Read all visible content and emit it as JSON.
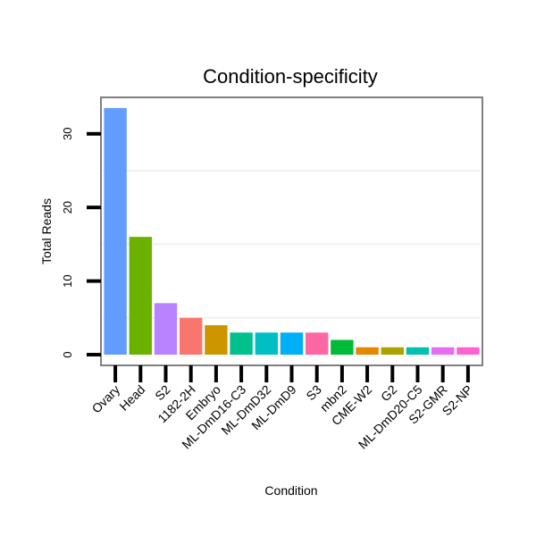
{
  "chart_data": {
    "type": "bar",
    "title": "Condition-specificity",
    "xlabel": "Condition",
    "ylabel": "Total Reads",
    "ylim": [
      0,
      35
    ],
    "yticks": [
      0,
      10,
      20,
      30
    ],
    "grid": true,
    "legend": "none",
    "categories": [
      "Ovary",
      "Head",
      "S2",
      "1182-2H",
      "Embryo",
      "ML-DmD16-C3",
      "ML-DmD32",
      "ML-DmD9",
      "S3",
      "mbn2",
      "CME-W2",
      "G2",
      "ML-DmD20-C5",
      "S2-GMR",
      "S2-NP"
    ],
    "values": [
      33.5,
      16,
      7,
      5,
      4,
      3,
      3,
      3,
      3,
      2,
      1,
      1,
      1,
      1,
      1
    ],
    "colors": [
      "#619CFF",
      "#6BB100",
      "#B983FF",
      "#F8766D",
      "#CD9600",
      "#00C08B",
      "#00BFC4",
      "#00B0F6",
      "#FF67A4",
      "#00BA38",
      "#E58700",
      "#ABA300",
      "#00C0AF",
      "#E76BF3",
      "#FD61D1"
    ]
  }
}
